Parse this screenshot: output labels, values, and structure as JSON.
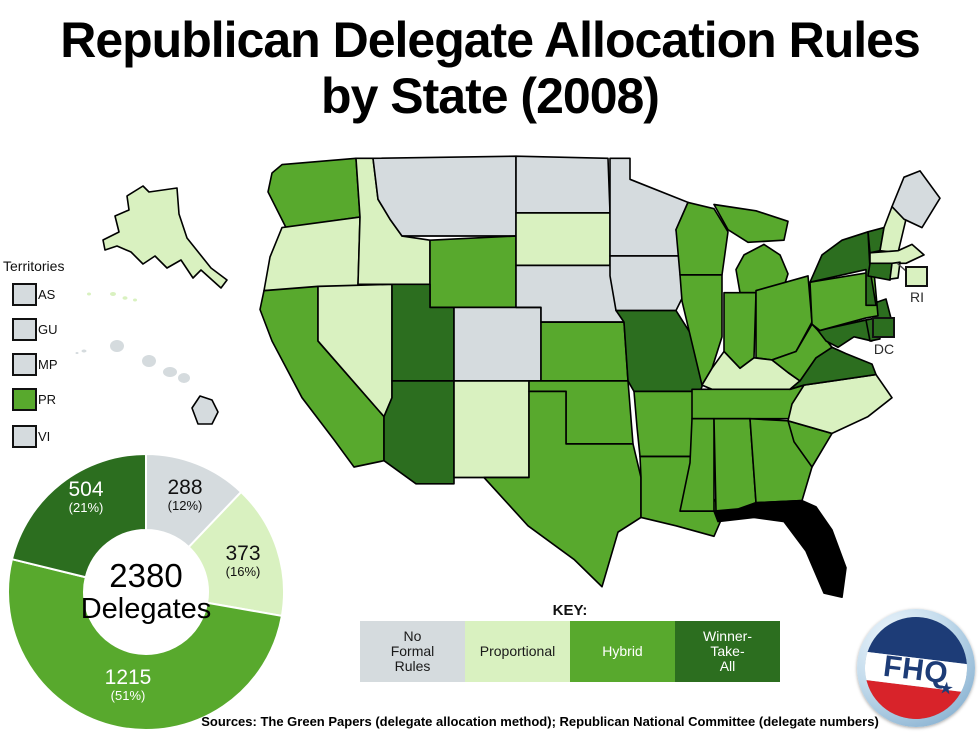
{
  "title": {
    "line1": "Republican Delegate Allocation Rules",
    "line2": "by State (2008)"
  },
  "key": {
    "heading": "KEY:",
    "categories": [
      {
        "id": "none",
        "label": "No\nFormal\nRules",
        "color": "#d5dbde",
        "text_color": "#1a1a1a"
      },
      {
        "id": "proportional",
        "label": "Proportional",
        "color": "#d9f1c0",
        "text_color": "#1a1a1a"
      },
      {
        "id": "hybrid",
        "label": "Hybrid",
        "color": "#58a92d",
        "text_color": "#ffffff"
      },
      {
        "id": "wta",
        "label": "Winner-\nTake-\nAll",
        "color": "#2c6e1f",
        "text_color": "#ffffff"
      }
    ]
  },
  "territories": {
    "heading": "Territories",
    "items": [
      {
        "label": "AS",
        "category": "none"
      },
      {
        "label": "GU",
        "category": "none"
      },
      {
        "label": "MP",
        "category": "none"
      },
      {
        "label": "PR",
        "category": "hybrid"
      },
      {
        "label": "VI",
        "category": "none"
      }
    ]
  },
  "callouts": {
    "ri": {
      "label": "RI",
      "category": "proportional"
    },
    "dc": {
      "label": "DC",
      "category": "wta"
    }
  },
  "donut": {
    "center_value": "2380",
    "center_label": "Delegates",
    "segments": [
      {
        "value": "288",
        "pct": "(12%)",
        "category": "none"
      },
      {
        "value": "373",
        "pct": "(16%)",
        "category": "proportional"
      },
      {
        "value": "1215",
        "pct": "(51%)",
        "category": "hybrid"
      },
      {
        "value": "504",
        "pct": "(21%)",
        "category": "wta"
      }
    ]
  },
  "chart_data": [
    {
      "type": "choropleth-map",
      "title": "Republican Delegate Allocation Rules by State (2008)",
      "legend": [
        "No Formal Rules",
        "Proportional",
        "Hybrid",
        "Winner-Take-All"
      ],
      "state_categories": {
        "WA": "hybrid",
        "OR": "proportional",
        "CA": "hybrid",
        "NV": "proportional",
        "ID": "proportional",
        "MT": "none",
        "WY": "hybrid",
        "UT": "wta",
        "CO": "none",
        "AZ": "wta",
        "NM": "proportional",
        "ND": "none",
        "SD": "proportional",
        "NE": "none",
        "KS": "hybrid",
        "OK": "hybrid",
        "TX": "hybrid",
        "MN": "none",
        "IA": "none",
        "MO": "wta",
        "AR": "hybrid",
        "LA": "hybrid",
        "WI": "hybrid",
        "MI": "hybrid",
        "IL": "hybrid",
        "IN": "hybrid",
        "OH": "hybrid",
        "KY": "proportional",
        "TN": "hybrid",
        "MS": "hybrid",
        "AL": "hybrid",
        "GA": "hybrid",
        "SC": "hybrid",
        "NC": "proportional",
        "VA": "wta",
        "WV": "hybrid",
        "MD": "wta",
        "DE": "wta",
        "NJ": "wta",
        "PA": "hybrid",
        "NY": "wta",
        "VT": "wta",
        "NH": "proportional",
        "ME": "none",
        "MA": "proportional",
        "CT": "wta",
        "RI": "proportional",
        "AK": "proportional",
        "HI": "none",
        "DC": "wta",
        "AS": "none",
        "GU": "none",
        "MP": "none",
        "PR": "hybrid",
        "VI": "none"
      }
    },
    {
      "type": "donut",
      "title": "2380 Delegates",
      "categories": [
        "No Formal Rules",
        "Proportional",
        "Hybrid",
        "Winner-Take-All"
      ],
      "values": [
        288,
        373,
        1215,
        504
      ],
      "percents": [
        12,
        16,
        51,
        21
      ],
      "total": 2380,
      "start_angle_deg": 0,
      "direction": "clockwise"
    }
  ],
  "sources": "Sources: The Green Papers (delegate allocation method); Republican National Committee (delegate numbers)",
  "logo": {
    "text": "FHQ",
    "star": "★",
    "navy": "#1d3c77",
    "red": "#d8232a"
  }
}
